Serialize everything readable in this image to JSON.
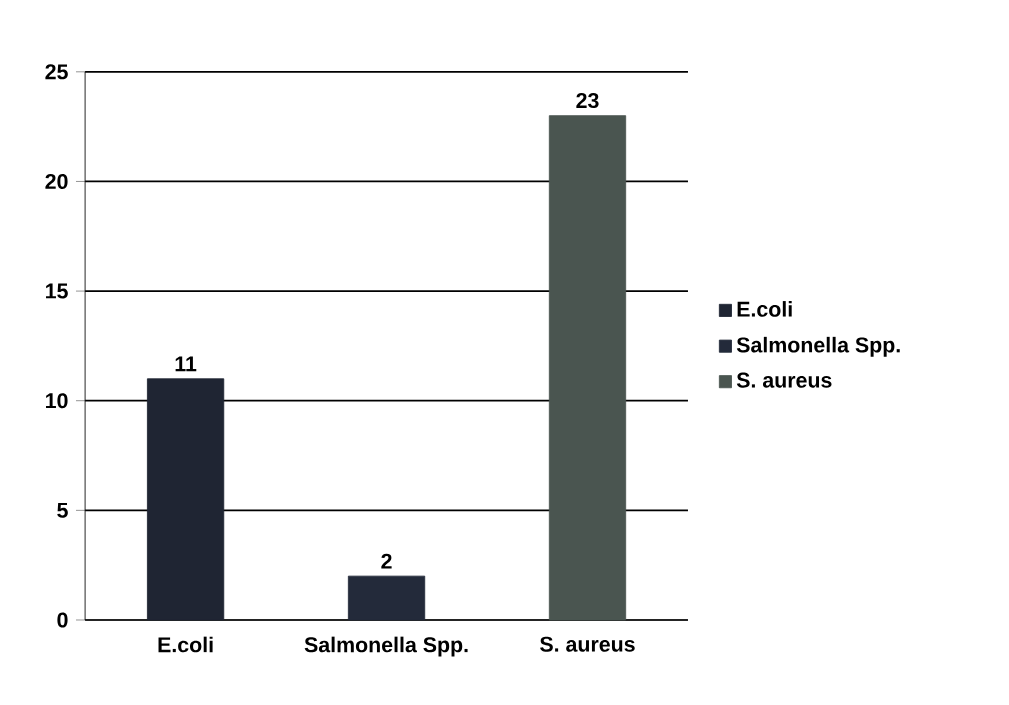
{
  "chart_data": {
    "type": "bar",
    "categories": [
      "E.coli",
      "Salmonella Spp.",
      "S. aureus"
    ],
    "series": [
      {
        "name": "E.coli",
        "color": "#1f2533",
        "values": [
          11,
          null,
          null
        ]
      },
      {
        "name": "Salmonella Spp.",
        "color": "#232a3a",
        "values": [
          null,
          2,
          null
        ]
      },
      {
        "name": "S. aureus",
        "color": "#4a5550",
        "values": [
          null,
          null,
          23
        ]
      }
    ],
    "ylim": [
      0,
      25
    ],
    "yticks": [
      0,
      5,
      10,
      15,
      20,
      25
    ],
    "grid": "y",
    "legend": "right",
    "data_labels": true
  }
}
